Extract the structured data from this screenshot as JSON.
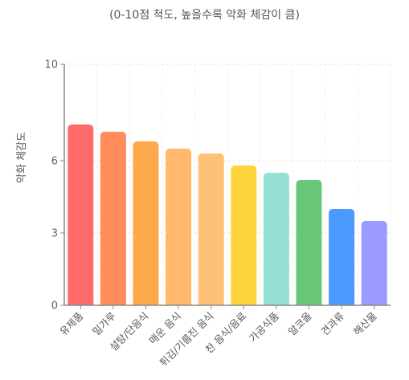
{
  "chart_data": {
    "type": "bar",
    "subtitle": "(0-10점 척도, 높을수록 악화 체감이 큼)",
    "ylabel": "악화 체감도",
    "ylim": [
      0,
      10
    ],
    "yticks": [
      0,
      3,
      6,
      10
    ],
    "grid": true,
    "categories": [
      "유제품",
      "밀가루",
      "설탕/단음식",
      "매운 음식",
      "튀김/기름진 음식",
      "찬 음식/음료",
      "가공식품",
      "알코올",
      "견과류",
      "해산물"
    ],
    "values": [
      7.5,
      7.2,
      6.8,
      6.5,
      6.3,
      5.8,
      5.5,
      5.2,
      4.0,
      3.5
    ],
    "colors": [
      "#ff6b6b",
      "#ff8c5a",
      "#ffa94d",
      "#ffb86c",
      "#ffc078",
      "#ffd43b",
      "#96e0d3",
      "#69c779",
      "#4c9aff",
      "#9b9bff"
    ]
  }
}
